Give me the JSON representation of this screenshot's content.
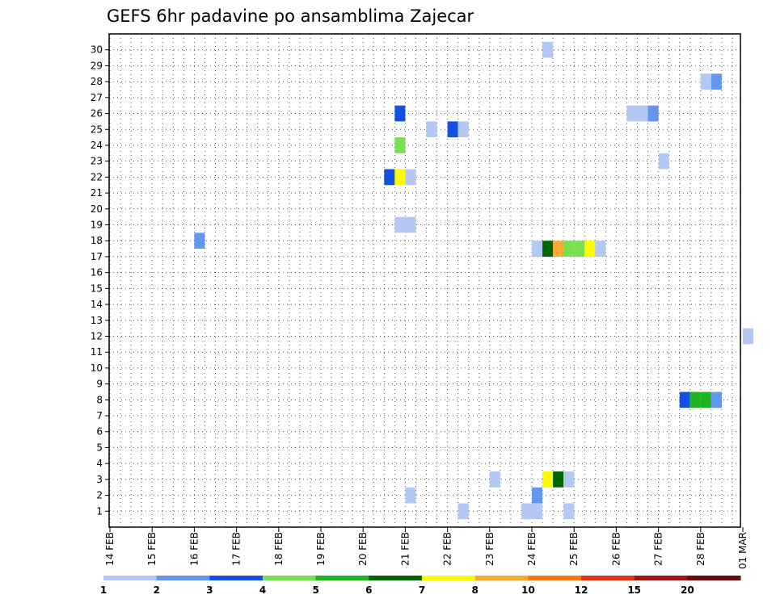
{
  "chart_data": {
    "type": "heatmap",
    "title": "GEFS 6hr padavine po ansamblima Zajecar",
    "x_labels": [
      "14 FEB",
      "15 FEB",
      "16 FEB",
      "17 FEB",
      "18 FEB",
      "19 FEB",
      "20 FEB",
      "21 FEB",
      "22 FEB",
      "23 FEB",
      "24 FEB",
      "25 FEB",
      "26 FEB",
      "27 FEB",
      "28 FEB",
      "01 MAR"
    ],
    "y_labels": [
      "1",
      "2",
      "3",
      "4",
      "5",
      "6",
      "7",
      "8",
      "9",
      "10",
      "11",
      "12",
      "13",
      "14",
      "15",
      "16",
      "17",
      "18",
      "19",
      "20",
      "21",
      "22",
      "23",
      "24",
      "25",
      "26",
      "27",
      "28",
      "29",
      "30"
    ],
    "ylim": [
      0,
      30
    ],
    "grid": true,
    "colorbar": {
      "levels": [
        "1",
        "2",
        "3",
        "4",
        "5",
        "6",
        "7",
        "8",
        "10",
        "12",
        "15",
        "20"
      ],
      "colors": [
        "#b4c8f5",
        "#6496f0",
        "#1450e1",
        "#78e150",
        "#1eb41e",
        "#006400",
        "#fafa00",
        "#faaa32",
        "#fa7814",
        "#e13214",
        "#a01414",
        "#6e0a0a"
      ]
    },
    "cells": [
      {
        "date": "24 FEB 06Z",
        "member": 30,
        "value": 1.5
      },
      {
        "date": "28 FEB 00Z",
        "member": 28,
        "value": 1.5
      },
      {
        "date": "28 FEB 06Z",
        "member": 28,
        "value": 2.5
      },
      {
        "date": "20 FEB 18Z",
        "member": 26,
        "value": 3.5
      },
      {
        "date": "26 FEB 06Z",
        "member": 26,
        "value": 1.5
      },
      {
        "date": "26 FEB 12Z",
        "member": 26,
        "value": 1.5
      },
      {
        "date": "26 FEB 18Z",
        "member": 26,
        "value": 2.5
      },
      {
        "date": "21 FEB 12Z",
        "member": 25,
        "value": 1.5
      },
      {
        "date": "22 FEB 00Z",
        "member": 25,
        "value": 3.5
      },
      {
        "date": "22 FEB 06Z",
        "member": 25,
        "value": 1.5
      },
      {
        "date": "20 FEB 18Z",
        "member": 24,
        "value": 4.5
      },
      {
        "date": "27 FEB 00Z",
        "member": 23,
        "value": 1.5
      },
      {
        "date": "20 FEB 12Z",
        "member": 22,
        "value": 3.5
      },
      {
        "date": "20 FEB 18Z",
        "member": 22,
        "value": 7.5
      },
      {
        "date": "21 FEB 00Z",
        "member": 22,
        "value": 1.5
      },
      {
        "date": "20 FEB 18Z",
        "member": 19,
        "value": 1.5
      },
      {
        "date": "21 FEB 00Z",
        "member": 19,
        "value": 1.5
      },
      {
        "date": "16 FEB 00Z",
        "member": 18,
        "value": 2.5
      },
      {
        "date": "24 FEB 00Z",
        "member": 17.5,
        "value": 1.5
      },
      {
        "date": "24 FEB 06Z",
        "member": 17.5,
        "value": 6.5
      },
      {
        "date": "24 FEB 12Z",
        "member": 17.5,
        "value": 9
      },
      {
        "date": "24 FEB 18Z",
        "member": 17.5,
        "value": 4.5
      },
      {
        "date": "25 FEB 00Z",
        "member": 17.5,
        "value": 4.5
      },
      {
        "date": "25 FEB 06Z",
        "member": 17.5,
        "value": 7.5
      },
      {
        "date": "25 FEB 12Z",
        "member": 17.5,
        "value": 1.5
      },
      {
        "date": "01 MAR 00Z",
        "member": 12,
        "value": 1.5
      },
      {
        "date": "27 FEB 12Z",
        "member": 8,
        "value": 3.5
      },
      {
        "date": "27 FEB 18Z",
        "member": 8,
        "value": 5.5
      },
      {
        "date": "28 FEB 00Z",
        "member": 8,
        "value": 5.5
      },
      {
        "date": "28 FEB 06Z",
        "member": 8,
        "value": 2.5
      },
      {
        "date": "24 FEB 06Z",
        "member": 3,
        "value": 7.5
      },
      {
        "date": "24 FEB 12Z",
        "member": 3,
        "value": 6.5
      },
      {
        "date": "24 FEB 18Z",
        "member": 3,
        "value": 1.5
      },
      {
        "date": "23 FEB 00Z",
        "member": 3,
        "value": 1.5
      },
      {
        "date": "24 FEB 00Z",
        "member": 2,
        "value": 2.5
      },
      {
        "date": "21 FEB 00Z",
        "member": 2,
        "value": 1.5
      },
      {
        "date": "22 FEB 06Z",
        "member": 1,
        "value": 1.5
      },
      {
        "date": "23 FEB 18Z",
        "member": 1,
        "value": 1.5
      },
      {
        "date": "24 FEB 00Z",
        "member": 1,
        "value": 1.5
      },
      {
        "date": "24 FEB 18Z",
        "member": 1,
        "value": 1.5
      }
    ]
  }
}
